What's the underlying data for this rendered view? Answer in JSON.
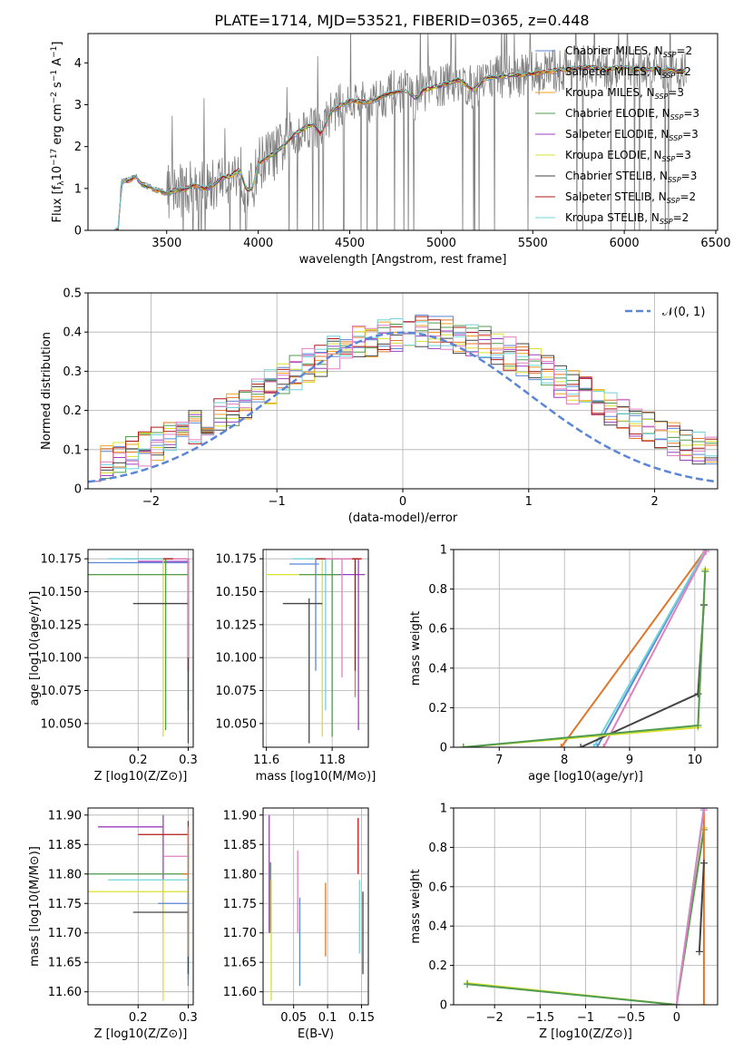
{
  "title": "PLATE=1714, MJD=53521, FIBERID=0365, z=0.448",
  "colors": {
    "Chabrier MILES": "#5b86d6",
    "Salpeter MILES": "#e0762a",
    "Kroupa MILES": "#f0a020",
    "Chabrier ELODIE": "#4f9b4f",
    "Salpeter ELODIE": "#9b3fbf",
    "Kroupa ELODIE": "#d8e030",
    "Chabrier STELIB": "#444444",
    "Salpeter STELIB": "#b01818",
    "Kroupa STELIB": "#6fd4dc",
    "pink": "#e080c0",
    "data": "#808080",
    "normal_curve": "#5b86d6"
  },
  "chart_data": [
    {
      "id": "spectrum",
      "type": "line",
      "title": "PLATE=1714, MJD=53521, FIBERID=0365, z=0.448",
      "xlabel": "wavelength [Angstrom, rest frame]",
      "ylabel": "Flux [f_λ 10^-17 erg cm^-2 s^-1 A^-1]",
      "xlim": [
        3070,
        6510
      ],
      "ylim": [
        0,
        4.7
      ],
      "xticks": [
        3500,
        4000,
        4500,
        5000,
        5500,
        6000,
        6500
      ],
      "yticks": [
        0,
        1,
        2,
        3,
        4
      ],
      "legend": "top-right",
      "model_shape": [
        [
          3210,
          0
        ],
        [
          3240,
          0
        ],
        [
          3250,
          1.15
        ],
        [
          3300,
          1.2
        ],
        [
          3330,
          1.3
        ],
        [
          3360,
          1.1
        ],
        [
          3400,
          1.05
        ],
        [
          3450,
          0.95
        ],
        [
          3500,
          0.9
        ],
        [
          3550,
          0.95
        ],
        [
          3600,
          0.98
        ],
        [
          3650,
          1.1
        ],
        [
          3700,
          1.0
        ],
        [
          3750,
          1.05
        ],
        [
          3800,
          1.25
        ],
        [
          3850,
          1.3
        ],
        [
          3900,
          1.45
        ],
        [
          3935,
          0.95
        ],
        [
          3970,
          1.0
        ],
        [
          4000,
          1.6
        ],
        [
          4050,
          1.75
        ],
        [
          4100,
          1.85
        ],
        [
          4200,
          2.3
        ],
        [
          4300,
          2.55
        ],
        [
          4340,
          2.3
        ],
        [
          4400,
          2.85
        ],
        [
          4500,
          3.1
        ],
        [
          4600,
          3.05
        ],
        [
          4700,
          3.25
        ],
        [
          4800,
          3.35
        ],
        [
          4860,
          3.15
        ],
        [
          4900,
          3.35
        ],
        [
          5000,
          3.45
        ],
        [
          5100,
          3.6
        ],
        [
          5175,
          3.35
        ],
        [
          5250,
          3.65
        ],
        [
          5400,
          3.7
        ],
        [
          5500,
          3.75
        ],
        [
          5600,
          3.8
        ],
        [
          5700,
          3.85
        ],
        [
          5800,
          3.9
        ],
        [
          5900,
          3.85
        ],
        [
          6000,
          3.9
        ],
        [
          6100,
          3.85
        ],
        [
          6200,
          3.85
        ],
        [
          6340,
          3.8
        ]
      ],
      "series": [
        {
          "name": "Chabrier MILES",
          "nssp": 2
        },
        {
          "name": "Salpeter MILES",
          "nssp": 2
        },
        {
          "name": "Kroupa MILES",
          "nssp": 3
        },
        {
          "name": "Chabrier ELODIE",
          "nssp": 3
        },
        {
          "name": "Salpeter ELODIE",
          "nssp": 3
        },
        {
          "name": "Kroupa ELODIE",
          "nssp": 3
        },
        {
          "name": "Chabrier STELIB",
          "nssp": 3
        },
        {
          "name": "Salpeter STELIB",
          "nssp": 2
        },
        {
          "name": "Kroupa STELIB",
          "nssp": 2
        }
      ]
    },
    {
      "id": "residuals",
      "type": "line",
      "xlabel": "(data-model)/error",
      "ylabel": "Normed distribution",
      "xlim": [
        -2.5,
        2.5
      ],
      "ylim": [
        0,
        0.5
      ],
      "xticks": [
        -2,
        -1,
        0,
        1,
        2
      ],
      "yticks": [
        0,
        0.1,
        0.2,
        0.3,
        0.4,
        0.5
      ],
      "legend": "top-right",
      "curve_label": "𝒩(0, 1)",
      "histogram_bins": {
        "start": -2.5,
        "width": 0.1,
        "count": 50
      }
    },
    {
      "id": "age_vs_Z",
      "type": "scatter",
      "xlabel": "Z [log10(Z/Z⊙)]",
      "ylabel": "age [log10(age/yr)]",
      "xlim": [
        0.1,
        0.31
      ],
      "ylim": [
        10.032,
        10.182
      ],
      "xticks": [
        0.2,
        0.3
      ],
      "yticks": [
        10.05,
        10.075,
        10.1,
        10.125,
        10.15,
        10.175
      ],
      "points": [
        {
          "color": "Chabrier MILES",
          "x": 0.3,
          "y": 10.172,
          "xerr": [
            0.1,
            0.302
          ],
          "yerr": [
            10.06,
            10.175
          ]
        },
        {
          "color": "Salpeter MILES",
          "x": 0.3,
          "y": 10.175,
          "xerr": [
            0.17,
            0.3
          ],
          "yerr": [
            10.06,
            10.175
          ]
        },
        {
          "color": "Kroupa STELIB",
          "x": 0.3,
          "y": 10.175,
          "xerr": [
            0.14,
            0.3
          ],
          "yerr": [
            10.06,
            10.175
          ]
        },
        {
          "color": "Salpeter ELODIE",
          "x": 0.3,
          "y": 10.173,
          "xerr": [
            0.2,
            0.3
          ],
          "yerr": [
            10.09,
            10.175
          ]
        },
        {
          "color": "Kroupa ELODIE",
          "x": 0.25,
          "y": 10.163,
          "xerr": [
            0.1,
            0.3
          ],
          "yerr": [
            10.04,
            10.175
          ]
        },
        {
          "color": "Chabrier ELODIE",
          "x": 0.255,
          "y": 10.163,
          "xerr": [
            0.1,
            0.3
          ],
          "yerr": [
            10.045,
            10.175
          ]
        },
        {
          "color": "Chabrier STELIB",
          "x": 0.3,
          "y": 10.141,
          "xerr": [
            0.19,
            0.3
          ],
          "yerr": [
            10.035,
            10.145
          ]
        },
        {
          "color": "Salpeter STELIB",
          "x": 0.3,
          "y": 10.175,
          "xerr": [
            0.25,
            0.3
          ],
          "yerr": [
            10.09,
            10.175
          ]
        },
        {
          "color": "pink",
          "x": 0.3,
          "y": 10.175,
          "xerr": [
            0.27,
            0.3
          ],
          "yerr": [
            10.1,
            10.175
          ]
        }
      ]
    },
    {
      "id": "age_vs_mass",
      "type": "scatter",
      "xlabel": "mass [log10(M/M⊙)]",
      "ylabel": "",
      "xlim": [
        11.59,
        11.91
      ],
      "ylim": [
        10.032,
        10.182
      ],
      "xticks": [
        11.6,
        11.8
      ],
      "yticks": [
        10.05,
        10.075,
        10.1,
        10.125,
        10.15,
        10.175
      ],
      "points": [
        {
          "color": "Chabrier MILES",
          "x": 11.75,
          "y": 10.171,
          "xerr": [
            11.67,
            11.76
          ],
          "yerr": [
            10.09,
            10.175
          ]
        },
        {
          "color": "Salpeter MILES",
          "x": 11.87,
          "y": 10.175,
          "xerr": [
            11.73,
            11.88
          ],
          "yerr": [
            10.07,
            10.175
          ]
        },
        {
          "color": "Kroupa STELIB",
          "x": 11.78,
          "y": 10.175,
          "xerr": [
            11.68,
            11.84
          ],
          "yerr": [
            10.06,
            10.175
          ]
        },
        {
          "color": "Salpeter ELODIE",
          "x": 11.88,
          "y": 10.163,
          "xerr": [
            11.78,
            11.9
          ],
          "yerr": [
            10.045,
            10.175
          ]
        },
        {
          "color": "Kroupa ELODIE",
          "x": 11.77,
          "y": 10.163,
          "xerr": [
            11.6,
            11.82
          ],
          "yerr": [
            10.04,
            10.175
          ]
        },
        {
          "color": "Chabrier ELODIE",
          "x": 11.8,
          "y": 10.163,
          "xerr": [
            11.7,
            11.82
          ],
          "yerr": [
            10.04,
            10.175
          ]
        },
        {
          "color": "Chabrier STELIB",
          "x": 11.73,
          "y": 10.141,
          "xerr": [
            11.65,
            11.77
          ],
          "yerr": [
            10.035,
            10.145
          ]
        },
        {
          "color": "Salpeter STELIB",
          "x": 11.87,
          "y": 10.175,
          "xerr": [
            11.75,
            11.89
          ],
          "yerr": [
            10.09,
            10.175
          ]
        },
        {
          "color": "pink",
          "x": 11.83,
          "y": 10.175,
          "xerr": [
            11.78,
            11.86
          ],
          "yerr": [
            10.085,
            10.175
          ]
        }
      ]
    },
    {
      "id": "mass_weight_vs_age",
      "type": "line",
      "xlabel": "age [log10(age/yr)]",
      "ylabel": "mass weight",
      "xlim": [
        6.3,
        10.35
      ],
      "ylim": [
        0,
        1
      ],
      "xticks": [
        7,
        8,
        9,
        10
      ],
      "yticks": [
        0,
        0.2,
        0.4,
        0.6,
        0.8,
        1.0
      ],
      "series": [
        {
          "color": "Salpeter MILES",
          "points": [
            [
              7.95,
              0.0
            ],
            [
              10.17,
              1.0
            ]
          ]
        },
        {
          "color": "Chabrier MILES",
          "points": [
            [
              8.5,
              0.0
            ],
            [
              10.17,
              1.0
            ]
          ]
        },
        {
          "color": "Kroupa STELIB",
          "points": [
            [
              8.45,
              0.0
            ],
            [
              10.17,
              1.0
            ]
          ]
        },
        {
          "color": "pink",
          "points": [
            [
              8.6,
              0.0
            ],
            [
              10.17,
              0.99
            ]
          ]
        },
        {
          "color": "Chabrier STELIB",
          "points": [
            [
              8.25,
              0.0
            ],
            [
              10.05,
              0.27
            ],
            [
              10.14,
              0.72
            ]
          ]
        },
        {
          "color": "Kroupa ELODIE",
          "points": [
            [
              6.45,
              0.0
            ],
            [
              10.05,
              0.1
            ],
            [
              10.16,
              0.9
            ]
          ]
        },
        {
          "color": "Chabrier ELODIE",
          "points": [
            [
              6.45,
              0.0
            ],
            [
              10.05,
              0.11
            ],
            [
              10.16,
              0.89
            ]
          ]
        }
      ]
    },
    {
      "id": "mass_vs_Z",
      "type": "scatter",
      "xlabel": "Z [log10(Z/Z⊙)]",
      "ylabel": "mass [log10(M/M⊙)]",
      "xlim": [
        0.1,
        0.31
      ],
      "ylim": [
        11.578,
        11.912
      ],
      "xticks": [
        0.2,
        0.3
      ],
      "yticks": [
        11.6,
        11.65,
        11.7,
        11.75,
        11.8,
        11.85,
        11.9
      ],
      "points": [
        {
          "color": "Salpeter ELODIE",
          "x": 0.25,
          "y": 11.88,
          "xerr": [
            0.12,
            0.25
          ],
          "yerr": [
            11.7,
            11.9
          ]
        },
        {
          "color": "Salpeter STELIB",
          "x": 0.3,
          "y": 11.867,
          "xerr": [
            0.2,
            0.3
          ],
          "yerr": [
            11.8,
            11.89
          ]
        },
        {
          "color": "pink",
          "x": 0.3,
          "y": 11.83,
          "xerr": [
            0.25,
            0.3
          ],
          "yerr": [
            11.7,
            11.88
          ]
        },
        {
          "color": "Chabrier ELODIE",
          "x": 0.3,
          "y": 11.8,
          "xerr": [
            0.1,
            0.3
          ],
          "yerr": [
            11.62,
            11.85
          ]
        },
        {
          "color": "Kroupa STELIB",
          "x": 0.3,
          "y": 11.79,
          "xerr": [
            0.14,
            0.3
          ],
          "yerr": [
            11.65,
            11.85
          ]
        },
        {
          "color": "Kroupa ELODIE",
          "x": 0.25,
          "y": 11.77,
          "xerr": [
            0.1,
            0.3
          ],
          "yerr": [
            11.585,
            11.79
          ]
        },
        {
          "color": "Chabrier MILES",
          "x": 0.3,
          "y": 11.75,
          "xerr": [
            0.24,
            0.3
          ],
          "yerr": [
            11.61,
            11.77
          ]
        },
        {
          "color": "Chabrier STELIB",
          "x": 0.3,
          "y": 11.735,
          "xerr": [
            0.19,
            0.3
          ],
          "yerr": [
            11.63,
            11.74
          ]
        },
        {
          "color": "Salpeter MILES",
          "x": 0.3,
          "y": 11.8,
          "xerr": [
            0.29,
            0.3
          ],
          "yerr": [
            11.66,
            11.88
          ]
        }
      ]
    },
    {
      "id": "mass_vs_EBV",
      "type": "scatter",
      "xlabel": "E(B-V)",
      "ylabel": "",
      "xlim": [
        0.005,
        0.16
      ],
      "ylim": [
        11.578,
        11.912
      ],
      "xticks": [
        0.05,
        0.1,
        0.15
      ],
      "yticks": [
        11.6,
        11.65,
        11.7,
        11.75,
        11.8,
        11.85,
        11.9
      ],
      "points": [
        {
          "color": "Salpeter ELODIE",
          "x": 0.014,
          "yerr": [
            11.7,
            11.9
          ]
        },
        {
          "color": "Chabrier ELODIE",
          "x": 0.016,
          "yerr": [
            11.7,
            11.82
          ]
        },
        {
          "color": "Kroupa ELODIE",
          "x": 0.017,
          "yerr": [
            11.585,
            11.79
          ]
        },
        {
          "color": "pink",
          "x": 0.056,
          "yerr": [
            11.7,
            11.84
          ]
        },
        {
          "color": "Chabrier MILES",
          "x": 0.059,
          "yerr": [
            11.61,
            11.76
          ]
        },
        {
          "color": "Salpeter MILES",
          "x": 0.097,
          "yerr": [
            11.66,
            11.785
          ]
        },
        {
          "color": "Salpeter STELIB",
          "x": 0.145,
          "yerr": [
            11.8,
            11.895
          ]
        },
        {
          "color": "Kroupa STELIB",
          "x": 0.147,
          "yerr": [
            11.665,
            11.79
          ]
        },
        {
          "color": "Chabrier STELIB",
          "x": 0.152,
          "yerr": [
            11.63,
            11.77
          ]
        }
      ]
    },
    {
      "id": "mass_weight_vs_Z",
      "type": "line",
      "xlabel": "Z [log10(Z/Z⊙)]",
      "ylabel": "mass weight",
      "xlim": [
        -2.45,
        0.45
      ],
      "ylim": [
        0,
        1
      ],
      "xticks": [
        -2.0,
        -1.5,
        -1.0,
        -0.5,
        0.0
      ],
      "yticks": [
        0,
        0.2,
        0.4,
        0.6,
        0.8,
        1.0
      ],
      "series": [
        {
          "color": "Kroupa ELODIE",
          "points": [
            [
              -2.3,
              0.11
            ],
            [
              0.0,
              0.0
            ],
            [
              0.3,
              0.9
            ]
          ]
        },
        {
          "color": "Chabrier ELODIE",
          "points": [
            [
              -2.3,
              0.105
            ],
            [
              0.0,
              0.0
            ],
            [
              0.3,
              0.89
            ]
          ]
        },
        {
          "color": "Salpeter MILES",
          "points": [
            [
              0.3,
              0.0
            ],
            [
              0.3,
              1.0
            ]
          ]
        },
        {
          "color": "Chabrier MILES",
          "points": [
            [
              0.0,
              0.0
            ],
            [
              0.3,
              1.0
            ]
          ]
        },
        {
          "color": "Kroupa STELIB",
          "points": [
            [
              0.0,
              0.0
            ],
            [
              0.3,
              1.0
            ]
          ]
        },
        {
          "color": "Chabrier STELIB",
          "points": [
            [
              0.25,
              0.27
            ],
            [
              0.3,
              0.72
            ]
          ]
        },
        {
          "color": "pink",
          "points": [
            [
              0.0,
              0.0
            ],
            [
              0.3,
              0.99
            ]
          ]
        }
      ]
    }
  ]
}
